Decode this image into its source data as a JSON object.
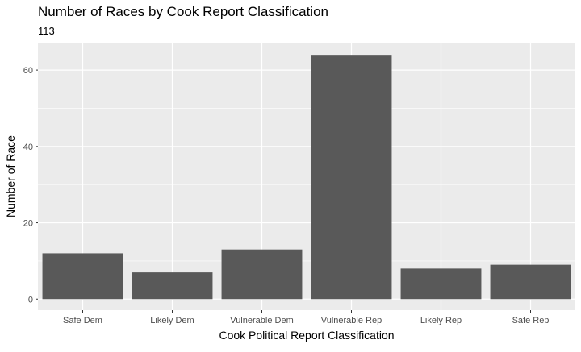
{
  "chart_data": {
    "type": "bar",
    "title": "Number of Races by Cook Report Classification",
    "subtitle": "113",
    "xlabel": "Cook Political Report Classification",
    "ylabel": "Number of Race",
    "categories": [
      "Safe Dem",
      "Likely Dem",
      "Vulnerable Dem",
      "Vulnerable Rep",
      "Likely Rep",
      "Safe Rep"
    ],
    "values": [
      12,
      7,
      13,
      64,
      8,
      9
    ],
    "ylim": [
      -2.9,
      67.2
    ],
    "yticks": [
      0,
      20,
      40,
      60
    ],
    "ytick_labels": [
      "0",
      "20",
      "40",
      "60"
    ],
    "grid": true,
    "colors": {
      "bar": "#595959",
      "panel": "#ebebeb",
      "grid_major": "#ffffff",
      "tick_text": "#4d4d4d"
    }
  }
}
